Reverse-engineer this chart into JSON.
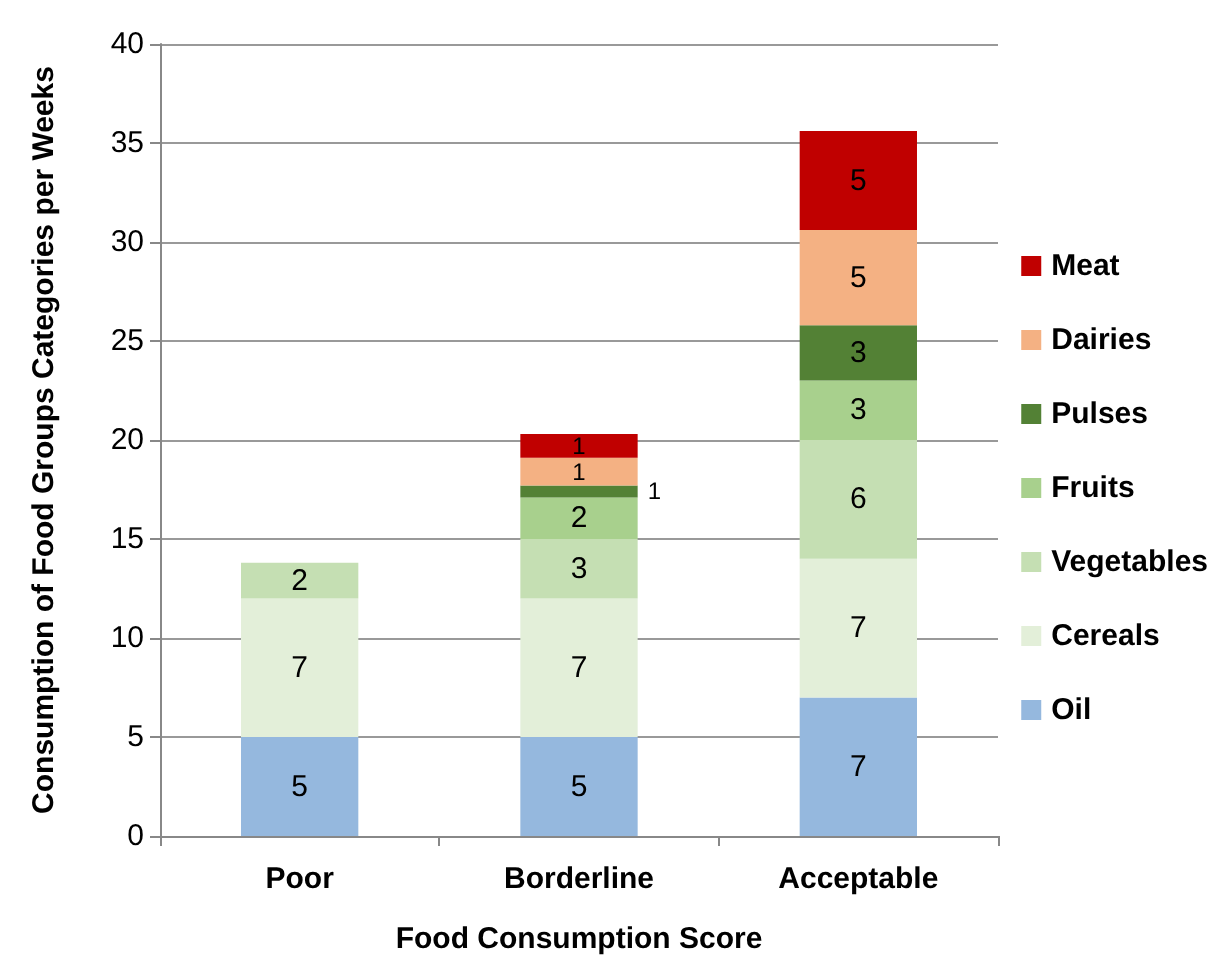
{
  "chart_data": {
    "type": "bar",
    "stacked": true,
    "xlabel": "Food Consumption Score",
    "ylabel": "Consumption of Food Groups Categories per Weeks",
    "categories": [
      "Poor",
      "Borderline",
      "Acceptable"
    ],
    "series": [
      {
        "name": "Oil",
        "color": "#95b8de",
        "values": [
          5,
          5,
          7
        ],
        "value_labels": [
          "5",
          "5",
          "7"
        ]
      },
      {
        "name": "Cereals",
        "color": "#e3efd9",
        "values": [
          7,
          7,
          7
        ],
        "value_labels": [
          "7",
          "7",
          "7"
        ]
      },
      {
        "name": "Vegetables",
        "color": "#c5dfb3",
        "values": [
          1.8,
          3,
          6
        ],
        "value_labels": [
          "2",
          "3",
          "6"
        ]
      },
      {
        "name": "Fruits",
        "color": "#a8d08d",
        "values": [
          null,
          2.1,
          3
        ],
        "value_labels": [
          null,
          "2",
          "3"
        ]
      },
      {
        "name": "Pulses",
        "color": "#538135",
        "values": [
          null,
          0.6,
          2.8
        ],
        "value_labels": [
          null,
          "1",
          "3"
        ]
      },
      {
        "name": "Dairies",
        "color": "#f4b183",
        "values": [
          null,
          1.4,
          4.8
        ],
        "value_labels": [
          null,
          "1",
          "5"
        ]
      },
      {
        "name": "Meat",
        "color": "#c00000",
        "values": [
          null,
          1.2,
          5
        ],
        "value_labels": [
          null,
          "1",
          "5"
        ]
      }
    ],
    "ylim": [
      0,
      40
    ],
    "yticks": [
      0,
      5,
      10,
      15,
      20,
      25,
      30,
      35,
      40
    ],
    "grid": "y",
    "legend": "right"
  }
}
